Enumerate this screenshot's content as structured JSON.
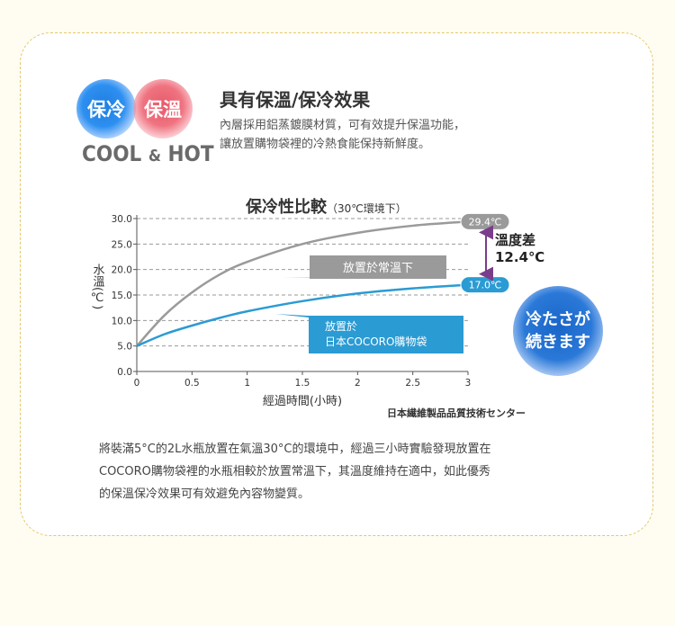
{
  "header": {
    "badge_cold": "保冷",
    "badge_hot": "保溫",
    "cool_hot_a": "COOL",
    "cool_hot_amp": "&",
    "cool_hot_b": "HOT",
    "headline": "具有保溫/保冷效果",
    "intro_line1": "內層採用鋁蒸鍍膜材質，可有效提升保溫功能，",
    "intro_line2": "讓放置購物袋裡的冷熱食能保持新鮮度。"
  },
  "chart_title_main": "保冷性比較",
  "chart_title_sub": "（30℃環境下）",
  "chart_data": {
    "type": "line",
    "title": "保冷性比較（30℃環境下）",
    "xlabel": "經過時間(小時)",
    "ylabel": "水溫(℃)",
    "xlim": [
      0,
      3
    ],
    "ylim": [
      0,
      30
    ],
    "x_ticks": [
      "0",
      "0.5",
      "1",
      "1.5",
      "2",
      "2.5",
      "3"
    ],
    "y_ticks": [
      "0.0",
      "5.0",
      "10.0",
      "15.0",
      "20.0",
      "25.0",
      "30.0"
    ],
    "grid": "dashed horizontal",
    "series": [
      {
        "name": "放置於常溫下",
        "color": "#9a9a9a",
        "x": [
          0,
          0.25,
          0.5,
          0.75,
          1,
          1.5,
          2,
          2.5,
          3
        ],
        "y": [
          5.0,
          11.0,
          15.5,
          19.0,
          21.5,
          25.0,
          27.2,
          28.6,
          29.4
        ]
      },
      {
        "name": "放置於日本COCORO購物袋",
        "name_line1": "放置於",
        "name_line2": "日本COCORO購物袋",
        "color": "#2b9bd3",
        "x": [
          0,
          0.25,
          0.5,
          0.75,
          1,
          1.5,
          2,
          2.5,
          3
        ],
        "y": [
          5.0,
          7.3,
          9.0,
          10.5,
          11.8,
          13.8,
          15.3,
          16.3,
          17.0
        ]
      }
    ],
    "end_labels": [
      "29.4℃",
      "17.0℃"
    ],
    "difference": {
      "label": "溫度差",
      "value": "12.4℃"
    }
  },
  "source": "日本繊維製品品質技術センター",
  "bubble": {
    "line1": "冷たさが",
    "line2": "続きます"
  },
  "bottom_text": {
    "line1": "將裝滿5°C的2L水瓶放置在氣溫30°C的環境中，經過三小時實驗發現放置在",
    "line2": "COCORO購物袋裡的水瓶相較於放置常溫下，其溫度維持在適中，如此優秀",
    "line3": "的保溫保冷效果可有效避免內容物變質。"
  },
  "colors": {
    "gray_line": "#9a9a9a",
    "blue_line": "#2b9bd3",
    "bubble_blue": "#2a78d8",
    "arrow_purple": "#7a3d8c",
    "border": "#e6c76a"
  }
}
